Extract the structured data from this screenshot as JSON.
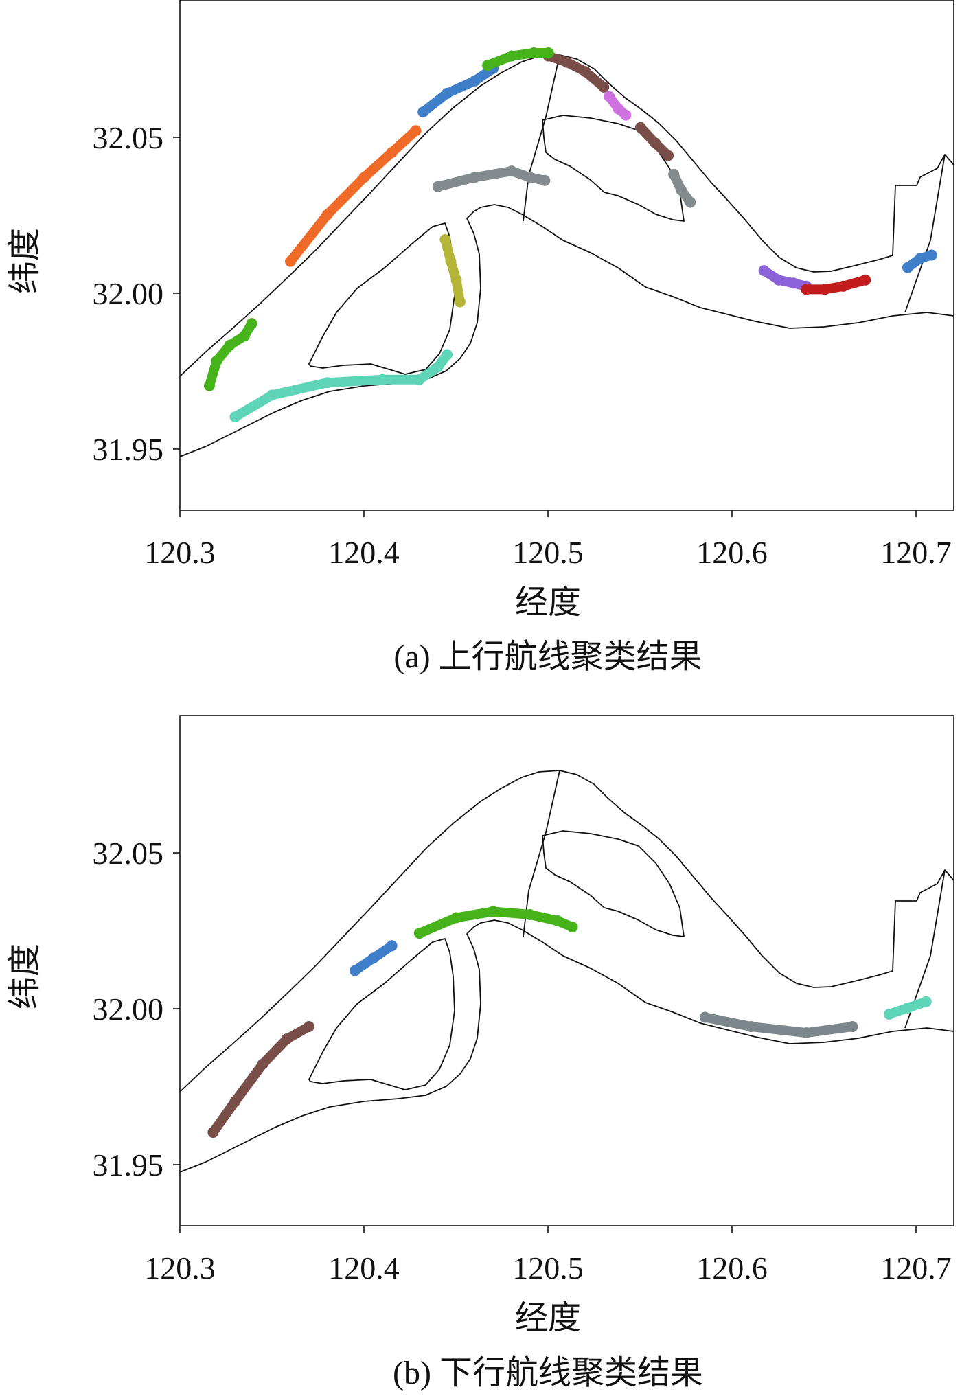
{
  "chart_data": [
    {
      "type": "scatter",
      "subplot_label": "(a) 上行航线聚类结果",
      "xlabel": "经度",
      "ylabel": "纬度",
      "xlim": [
        120.3,
        120.72
      ],
      "ylim": [
        31.93,
        32.094
      ],
      "xticks": [
        120.3,
        120.4,
        120.5,
        120.6,
        120.7
      ],
      "xtick_labels": [
        "120.3",
        "120.4",
        "120.5",
        "120.6",
        "120.7"
      ],
      "yticks": [
        31.95,
        32.0,
        32.05
      ],
      "ytick_labels": [
        "31.95",
        "32.00",
        "32.05"
      ],
      "grid": false,
      "clusters": [
        {
          "color": "#7a4e48",
          "points": [
            [
              120.5,
              32.076
            ],
            [
              120.51,
              32.074
            ],
            [
              120.52,
              32.071
            ],
            [
              120.53,
              32.066
            ]
          ]
        },
        {
          "color": "#cf72e0",
          "points": [
            [
              120.533,
              32.063
            ],
            [
              120.538,
              32.059
            ],
            [
              120.542,
              32.057
            ]
          ]
        },
        {
          "color": "#3f7fc9",
          "points": [
            [
              120.432,
              32.058
            ],
            [
              120.445,
              32.064
            ],
            [
              120.46,
              32.068
            ],
            [
              120.47,
              32.072
            ]
          ]
        },
        {
          "color": "#45b319",
          "points": [
            [
              120.467,
              32.073
            ],
            [
              120.48,
              32.076
            ],
            [
              120.492,
              32.077
            ],
            [
              120.5,
              32.077
            ]
          ]
        },
        {
          "color": "#ef6a26",
          "points": [
            [
              120.36,
              32.01
            ],
            [
              120.38,
              32.025
            ],
            [
              120.4,
              32.037
            ],
            [
              120.415,
              32.045
            ],
            [
              120.428,
              32.052
            ]
          ]
        },
        {
          "color": "#7a4e48",
          "points": [
            [
              120.55,
              32.053
            ],
            [
              120.558,
              32.048
            ],
            [
              120.565,
              32.044
            ]
          ]
        },
        {
          "color": "#848b8e",
          "points": [
            [
              120.44,
              32.034
            ],
            [
              120.46,
              32.037
            ],
            [
              120.48,
              32.039
            ],
            [
              120.49,
              32.037
            ],
            [
              120.498,
              32.036
            ]
          ]
        },
        {
          "color": "#848b8e",
          "points": [
            [
              120.568,
              32.038
            ],
            [
              120.572,
              32.033
            ],
            [
              120.577,
              32.029
            ]
          ]
        },
        {
          "color": "#b5b537",
          "points": [
            [
              120.444,
              32.017
            ],
            [
              120.447,
              32.01
            ],
            [
              120.45,
              32.004
            ],
            [
              120.452,
              31.997
            ]
          ]
        },
        {
          "color": "#45b319",
          "points": [
            [
              120.316,
              31.97
            ],
            [
              120.32,
              31.978
            ],
            [
              120.327,
              31.983
            ],
            [
              120.335,
              31.986
            ],
            [
              120.339,
              31.99
            ]
          ]
        },
        {
          "color": "#5fd5b7",
          "points": [
            [
              120.33,
              31.96
            ],
            [
              120.35,
              31.967
            ],
            [
              120.38,
              31.971
            ],
            [
              120.41,
              31.972
            ],
            [
              120.43,
              31.972
            ],
            [
              120.44,
              31.976
            ],
            [
              120.445,
              31.98
            ]
          ]
        },
        {
          "color": "#8b62d8",
          "points": [
            [
              120.617,
              32.007
            ],
            [
              120.625,
              32.004
            ],
            [
              120.633,
              32.003
            ],
            [
              120.64,
              32.002
            ]
          ]
        },
        {
          "color": "#c21c1c",
          "points": [
            [
              120.64,
              32.001
            ],
            [
              120.65,
              32.001
            ],
            [
              120.66,
              32.002
            ],
            [
              120.672,
              32.004
            ]
          ]
        },
        {
          "color": "#3f7fc9",
          "points": [
            [
              120.695,
              32.008
            ],
            [
              120.702,
              32.011
            ],
            [
              120.708,
              32.012
            ]
          ]
        }
      ]
    },
    {
      "type": "scatter",
      "subplot_label": "(b) 下行航线聚类结果",
      "xlabel": "经度",
      "ylabel": "纬度",
      "xlim": [
        120.3,
        120.72
      ],
      "ylim": [
        31.93,
        32.094
      ],
      "xticks": [
        120.3,
        120.4,
        120.5,
        120.6,
        120.7
      ],
      "xtick_labels": [
        "120.3",
        "120.4",
        "120.5",
        "120.6",
        "120.7"
      ],
      "yticks": [
        31.95,
        32.0,
        32.05
      ],
      "ytick_labels": [
        "31.95",
        "32.00",
        "32.05"
      ],
      "grid": false,
      "clusters": [
        {
          "color": "#45b319",
          "points": [
            [
              120.43,
              32.024
            ],
            [
              120.45,
              32.029
            ],
            [
              120.47,
              32.031
            ],
            [
              120.49,
              32.03
            ],
            [
              120.505,
              32.028
            ],
            [
              120.513,
              32.026
            ]
          ]
        },
        {
          "color": "#3f7fc9",
          "points": [
            [
              120.395,
              32.012
            ],
            [
              120.405,
              32.016
            ],
            [
              120.415,
              32.02
            ]
          ]
        },
        {
          "color": "#7a4e48",
          "points": [
            [
              120.318,
              31.96
            ],
            [
              120.33,
              31.97
            ],
            [
              120.345,
              31.982
            ],
            [
              120.358,
              31.99
            ],
            [
              120.37,
              31.994
            ]
          ]
        },
        {
          "color": "#7c878c",
          "points": [
            [
              120.585,
              31.997
            ],
            [
              120.61,
              31.994
            ],
            [
              120.64,
              31.992
            ],
            [
              120.665,
              31.994
            ]
          ]
        },
        {
          "color": "#5fd5b7",
          "points": [
            [
              120.685,
              31.998
            ],
            [
              120.695,
              32.0
            ],
            [
              120.705,
              32.002
            ]
          ]
        }
      ]
    }
  ]
}
